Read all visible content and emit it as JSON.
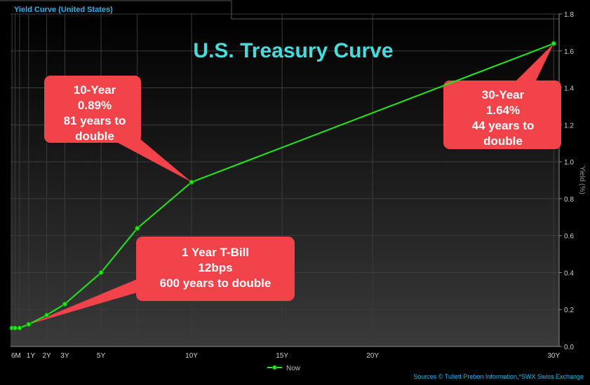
{
  "header": {
    "title": "Yield Curve (United States)"
  },
  "footer": {
    "source": "Sources  © Tullett Prebon Information,*SWX Swiss Exchange"
  },
  "colors": {
    "accent": "#28b4f0",
    "series": "#22e81a",
    "callout": "#f2434a",
    "title": "#46dcdc",
    "background": "#000000"
  },
  "chart_data": {
    "type": "line",
    "title": "U.S. Treasury Curve",
    "xlabel": "",
    "ylabel": "Yield (%)",
    "x_unit": "years",
    "xlim": [
      0,
      30.3
    ],
    "ylim": [
      0,
      1.8
    ],
    "grid": true,
    "yaxis_side": "right",
    "x_ticks": [
      {
        "value": 0.5,
        "label": "6M"
      },
      {
        "value": 1,
        "label": "1Y"
      },
      {
        "value": 2,
        "label": "2Y"
      },
      {
        "value": 3,
        "label": "3Y"
      },
      {
        "value": 5,
        "label": "5Y"
      },
      {
        "value": 10,
        "label": "10Y"
      },
      {
        "value": 15,
        "label": "15Y"
      },
      {
        "value": 20,
        "label": "20Y"
      },
      {
        "value": 30,
        "label": "30Y"
      }
    ],
    "x_gridlines": [
      0.083,
      0.25,
      0.5,
      1,
      2,
      3,
      5,
      7,
      10,
      15,
      20,
      30
    ],
    "y_ticks": [
      0.0,
      0.2,
      0.4,
      0.6,
      0.8,
      1.0,
      1.2,
      1.4,
      1.6,
      1.8
    ],
    "legend_position": "bottom-center",
    "series": [
      {
        "name": "Now",
        "color": "#22e81a",
        "x": [
          0.083,
          0.25,
          0.5,
          1,
          2,
          3,
          5,
          7,
          10,
          30
        ],
        "y": [
          0.1,
          0.1,
          0.1,
          0.12,
          0.17,
          0.23,
          0.4,
          0.64,
          0.89,
          1.64
        ]
      }
    ],
    "annotations": [
      {
        "lines": [
          "10-Year",
          "0.89%",
          "81 years to",
          "double"
        ],
        "target_x": 10,
        "target_y": 0.89
      },
      {
        "lines": [
          "30-Year",
          "1.64%",
          "44 years to",
          "double"
        ],
        "target_x": 30,
        "target_y": 1.64
      },
      {
        "lines": [
          "1 Year T-Bill",
          "12bps",
          "600 years to double"
        ],
        "target_x": 1,
        "target_y": 0.12
      }
    ]
  }
}
